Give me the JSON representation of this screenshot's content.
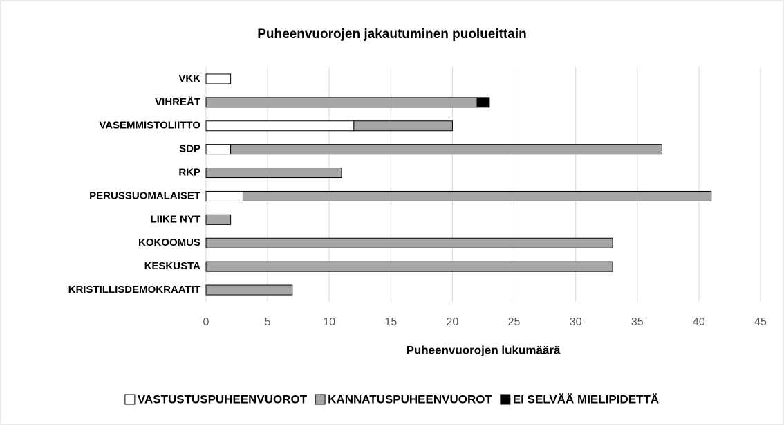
{
  "chart_data": {
    "type": "stacked_barh",
    "title": "Puheenvuorojen jakautuminen puolueittain",
    "x_label": "Puheenvuorojen lukumäärä",
    "categories": [
      "VKK",
      "VIHREÄT",
      "VASEMMISTOLIITTO",
      "SDP",
      "RKP",
      "PERUSSUOMALAISET",
      "LIIKE NYT",
      "KOKOOMUS",
      "KESKUSTA",
      "KRISTILLISDEMOKRAATIT"
    ],
    "series": [
      {
        "name": "VASTUSTUSPUHEENVUOROT",
        "color": "#ffffff",
        "values": [
          2,
          0,
          12,
          2,
          0,
          3,
          0,
          0,
          0,
          0
        ]
      },
      {
        "name": "KANNATUSPUHEENVUOROT",
        "color": "#a6a6a6",
        "values": [
          0,
          22,
          8,
          35,
          11,
          38,
          2,
          33,
          33,
          7
        ]
      },
      {
        "name": "EI SELVÄÄ MIELIPIDETTÄ",
        "color": "#000000",
        "values": [
          0,
          1,
          0,
          0,
          0,
          0,
          0,
          0,
          0,
          0
        ]
      }
    ],
    "xlim": [
      0,
      45
    ],
    "xticks": [
      0,
      5,
      10,
      15,
      20,
      25,
      30,
      35,
      40,
      45
    ],
    "grid": true,
    "legend": "bottom"
  }
}
